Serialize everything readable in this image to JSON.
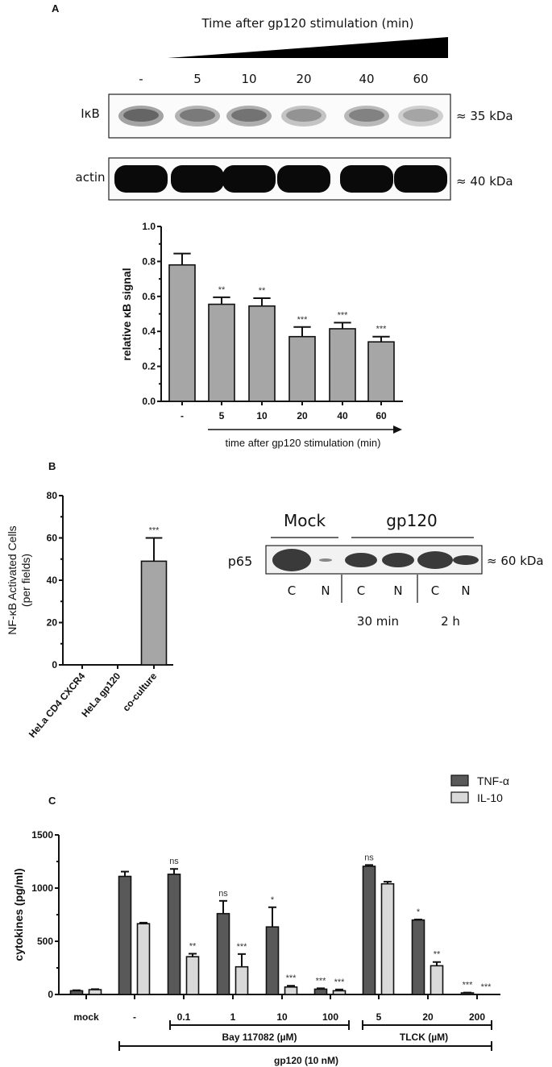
{
  "panels": {
    "a": "A",
    "b": "B",
    "c": "C"
  },
  "blot_a": {
    "title": "Time after gp120 stimulation (min)",
    "lanes": [
      "-",
      "5",
      "10",
      "20",
      "40",
      "60"
    ],
    "rows": [
      {
        "label": "IκB",
        "size": "≈ 35 kDa"
      },
      {
        "label": "actin",
        "size": "≈ 40 kDa"
      }
    ]
  },
  "blot_b": {
    "groups": [
      "Mock",
      "gp120"
    ],
    "row_label": "p65",
    "size": "≈ 60 kDa",
    "lanes": [
      "C",
      "N",
      "C",
      "N",
      "C",
      "N"
    ],
    "times": [
      "30 min",
      "2 h"
    ]
  },
  "chart_data": [
    {
      "type": "bar",
      "title": "",
      "ylabel": "relative κB signal",
      "xlabel": "time after gp120 stimulation (min)",
      "categories": [
        "-",
        "5",
        "10",
        "20",
        "40",
        "60"
      ],
      "values": [
        0.78,
        0.555,
        0.545,
        0.37,
        0.415,
        0.34
      ],
      "errors": [
        0.065,
        0.04,
        0.045,
        0.055,
        0.035,
        0.03
      ],
      "significance": [
        "",
        "**",
        "**",
        "***",
        "***",
        "***"
      ],
      "ylim": [
        0,
        1.0
      ],
      "yticks": [
        "0.0",
        "0.2",
        "0.4",
        "0.6",
        "0.8",
        "1.0"
      ],
      "color": "#a6a6a6"
    },
    {
      "type": "bar",
      "ylabel": [
        "NF-κB Activated Cells",
        "(per fields)"
      ],
      "categories": [
        "HeLa CD4 CXCR4",
        "HeLa gp120",
        "co-culture"
      ],
      "values": [
        0,
        0,
        49
      ],
      "errors": [
        0,
        0,
        11
      ],
      "significance": [
        "",
        "",
        "***"
      ],
      "ylim": [
        0,
        80
      ],
      "yticks": [
        "0",
        "20",
        "40",
        "60",
        "80"
      ],
      "color": "#a6a6a6"
    },
    {
      "type": "bar",
      "ylabel": "cytokines (pg/ml)",
      "categories": [
        "mock",
        "-",
        "0.1",
        "1",
        "10",
        "100",
        "5",
        "20",
        "200"
      ],
      "series": [
        {
          "name": "TNF-α",
          "color": "#595959",
          "values": [
            35,
            1110,
            1130,
            760,
            635,
            50,
            1205,
            700,
            15
          ],
          "errors": [
            5,
            45,
            50,
            120,
            185,
            8,
            12,
            5,
            3
          ],
          "significance": [
            "",
            "",
            "ns",
            "ns",
            "*",
            "***",
            "ns",
            "*",
            "***"
          ]
        },
        {
          "name": "IL-10",
          "color": "#d9d9d9",
          "values": [
            45,
            665,
            355,
            260,
            70,
            35,
            1040,
            270,
            0
          ],
          "errors": [
            5,
            10,
            28,
            120,
            12,
            12,
            20,
            35,
            0
          ],
          "significance": [
            "",
            "",
            "**",
            "***",
            "***",
            "***",
            "",
            "**",
            "***"
          ]
        }
      ],
      "ylim": [
        0,
        1500
      ],
      "yticks": [
        "0",
        "500",
        "1000",
        "1500"
      ],
      "brackets": [
        "Bay 117082 (µM)",
        "TLCK (µM)",
        "gp120 (10 nM)"
      ],
      "legend": "top-right"
    }
  ]
}
